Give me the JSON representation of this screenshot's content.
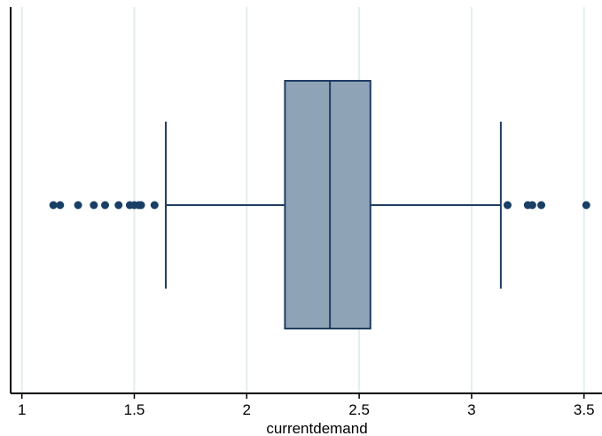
{
  "chart_data": {
    "type": "box",
    "xlabel": "currentdemand",
    "xlim": [
      0.95,
      3.58
    ],
    "xticks": [
      1,
      1.5,
      2,
      2.5,
      3,
      3.5
    ],
    "xtick_labels": [
      "1",
      "1.5",
      "2",
      "2.5",
      "3",
      "3.5"
    ],
    "grid": true,
    "orientation": "horizontal",
    "box": {
      "lower_whisker": 1.64,
      "q1": 2.17,
      "median": 2.37,
      "q3": 2.55,
      "upper_whisker": 3.13
    },
    "outliers": [
      1.14,
      1.17,
      1.25,
      1.32,
      1.37,
      1.43,
      1.48,
      1.5,
      1.52,
      1.53,
      1.59,
      3.16,
      3.25,
      3.27,
      3.31,
      3.51
    ],
    "colors": {
      "box_fill": "#8fa3b6",
      "box_stroke": "#1f3d63",
      "whisker": "#1f3d63",
      "outlier": "#1a3f66",
      "grid": "#e4ecef",
      "axis": "#000000",
      "plot_border": "#000000"
    }
  }
}
